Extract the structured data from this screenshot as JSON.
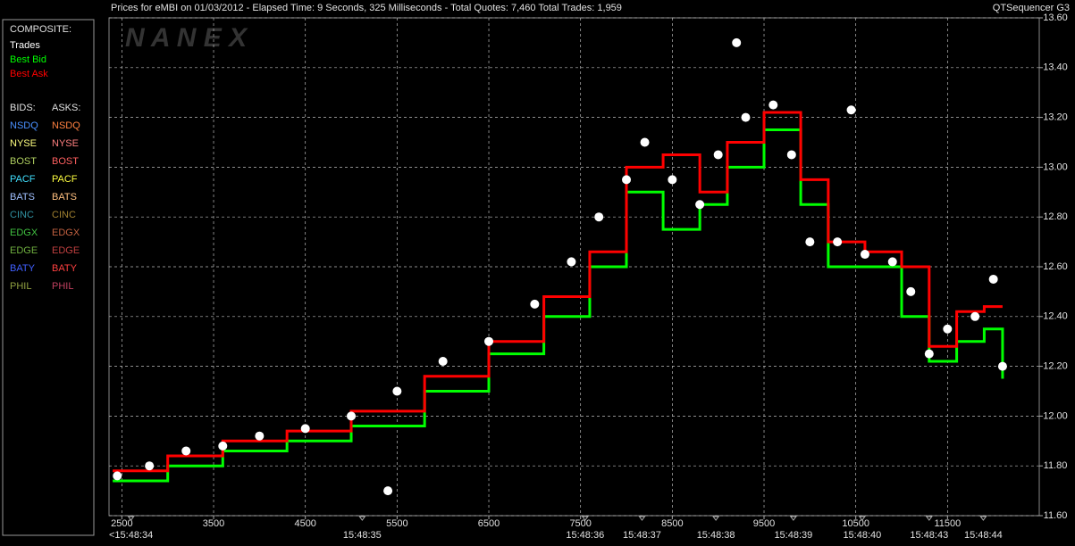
{
  "header": {
    "title": "Prices for  eMBI  on  01/03/2012  -  Elapsed Time: 9 Seconds, 325 Milliseconds  -  Total Quotes: 7,460  Total Trades: 1,959",
    "app": "QTSequencer G3"
  },
  "watermark": "N A N E X",
  "legend": {
    "composite_title": "COMPOSITE:",
    "bids_title": "BIDS:",
    "asks_title": "ASKS:",
    "bids": [
      {
        "name": "NSDQ",
        "color": "#4a90ff"
      },
      {
        "name": "NYSE",
        "color": "#ffff80"
      },
      {
        "name": "BOST",
        "color": "#b0d060"
      },
      {
        "name": "PACF",
        "color": "#40e0ff"
      },
      {
        "name": "BATS",
        "color": "#a0c0ff"
      },
      {
        "name": "CINC",
        "color": "#3090a0"
      },
      {
        "name": "EDGX",
        "color": "#40c040"
      },
      {
        "name": "EDGE",
        "color": "#70b040"
      },
      {
        "name": "BATY",
        "color": "#4060ff"
      },
      {
        "name": "PHIL",
        "color": "#90a040"
      }
    ],
    "asks": [
      {
        "name": "NSDQ",
        "color": "#ff8040"
      },
      {
        "name": "NYSE",
        "color": "#ff8080"
      },
      {
        "name": "BOST",
        "color": "#ff6060"
      },
      {
        "name": "PACF",
        "color": "#ffff40"
      },
      {
        "name": "BATS",
        "color": "#ffc080"
      },
      {
        "name": "CINC",
        "color": "#a08030"
      },
      {
        "name": "EDGX",
        "color": "#c06040"
      },
      {
        "name": "EDGE",
        "color": "#c04040"
      },
      {
        "name": "BATY",
        "color": "#ff4040"
      },
      {
        "name": "PHIL",
        "color": "#c04060"
      }
    ]
  },
  "chart_data": {
    "type": "scatter",
    "xlim": [
      2360,
      12500
    ],
    "ylim": [
      11.6,
      13.6
    ],
    "xticks": [
      2500,
      3500,
      4500,
      5500,
      6500,
      7500,
      8500,
      9500,
      10500,
      11500
    ],
    "yticks": [
      {
        "value": 11.6,
        "label": "11.60"
      },
      {
        "value": 11.8,
        "label": "11.80"
      },
      {
        "value": 12.0,
        "label": "12.00"
      },
      {
        "value": 12.2,
        "label": "12.20"
      },
      {
        "value": 12.4,
        "label": "12.40"
      },
      {
        "value": 12.6,
        "label": "12.60"
      },
      {
        "value": 12.8,
        "label": "12.80"
      },
      {
        "value": 13.0,
        "label": "13.00"
      },
      {
        "value": 13.2,
        "label": "13.20"
      },
      {
        "value": 13.4,
        "label": "13.40"
      },
      {
        "value": 13.6,
        "label": "13.60"
      }
    ],
    "time_ticks": [
      {
        "value": 2600,
        "label": "<15:48:34"
      },
      {
        "value": 5120,
        "label": "15:48:35"
      },
      {
        "value": 7550,
        "label": "15:48:36"
      },
      {
        "value": 8170,
        "label": "15:48:37"
      },
      {
        "value": 8975,
        "label": "15:48:38"
      },
      {
        "value": 9820,
        "label": "15:48:39"
      },
      {
        "value": 10570,
        "label": "15:48:40"
      },
      {
        "value": 11300,
        "label": "15:48:43"
      },
      {
        "value": 11890,
        "label": "15:48:44"
      }
    ],
    "grid": true,
    "series": [
      {
        "name": "Trades",
        "color": "#ffffff",
        "style": "markers",
        "x": [
          2450,
          2800,
          3200,
          3600,
          4000,
          4500,
          5000,
          5400,
          5500,
          6000,
          6500,
          7000,
          7400,
          7700,
          8000,
          8200,
          8500,
          8800,
          9000,
          9200,
          9300,
          9600,
          9800,
          10000,
          10300,
          10450,
          10600,
          10900,
          11100,
          11300,
          11500,
          11800,
          12000,
          12100
        ],
        "values": [
          11.76,
          11.8,
          11.86,
          11.88,
          11.92,
          11.95,
          12.0,
          11.7,
          12.1,
          12.22,
          12.3,
          12.45,
          12.62,
          12.8,
          12.95,
          13.1,
          12.95,
          12.85,
          13.05,
          13.5,
          13.2,
          13.25,
          13.05,
          12.7,
          12.7,
          13.23,
          12.65,
          12.62,
          12.5,
          12.25,
          12.35,
          12.4,
          12.55,
          12.2
        ]
      },
      {
        "name": "Best Bid",
        "color": "#00ff00",
        "style": "line",
        "x": [
          2400,
          3000,
          3600,
          4300,
          5000,
          5800,
          6500,
          7100,
          7600,
          8000,
          8400,
          8800,
          9100,
          9500,
          9900,
          10200,
          10600,
          11000,
          11300,
          11600,
          11900,
          12100
        ],
        "values": [
          11.74,
          11.8,
          11.86,
          11.9,
          11.96,
          12.1,
          12.25,
          12.4,
          12.6,
          12.9,
          12.75,
          12.85,
          13.0,
          13.15,
          12.85,
          12.6,
          12.6,
          12.4,
          12.22,
          12.3,
          12.35,
          12.15
        ]
      },
      {
        "name": "Best Ask",
        "color": "#ff0000",
        "style": "line",
        "x": [
          2400,
          3000,
          3600,
          4300,
          5000,
          5800,
          6500,
          7100,
          7600,
          8000,
          8400,
          8800,
          9100,
          9500,
          9900,
          10200,
          10600,
          11000,
          11300,
          11600,
          11900,
          12100
        ],
        "values": [
          11.78,
          11.84,
          11.9,
          11.94,
          12.02,
          12.16,
          12.3,
          12.48,
          12.66,
          13.0,
          13.05,
          12.9,
          13.1,
          13.22,
          12.95,
          12.7,
          12.66,
          12.6,
          12.28,
          12.42,
          12.44,
          12.44
        ]
      }
    ]
  }
}
